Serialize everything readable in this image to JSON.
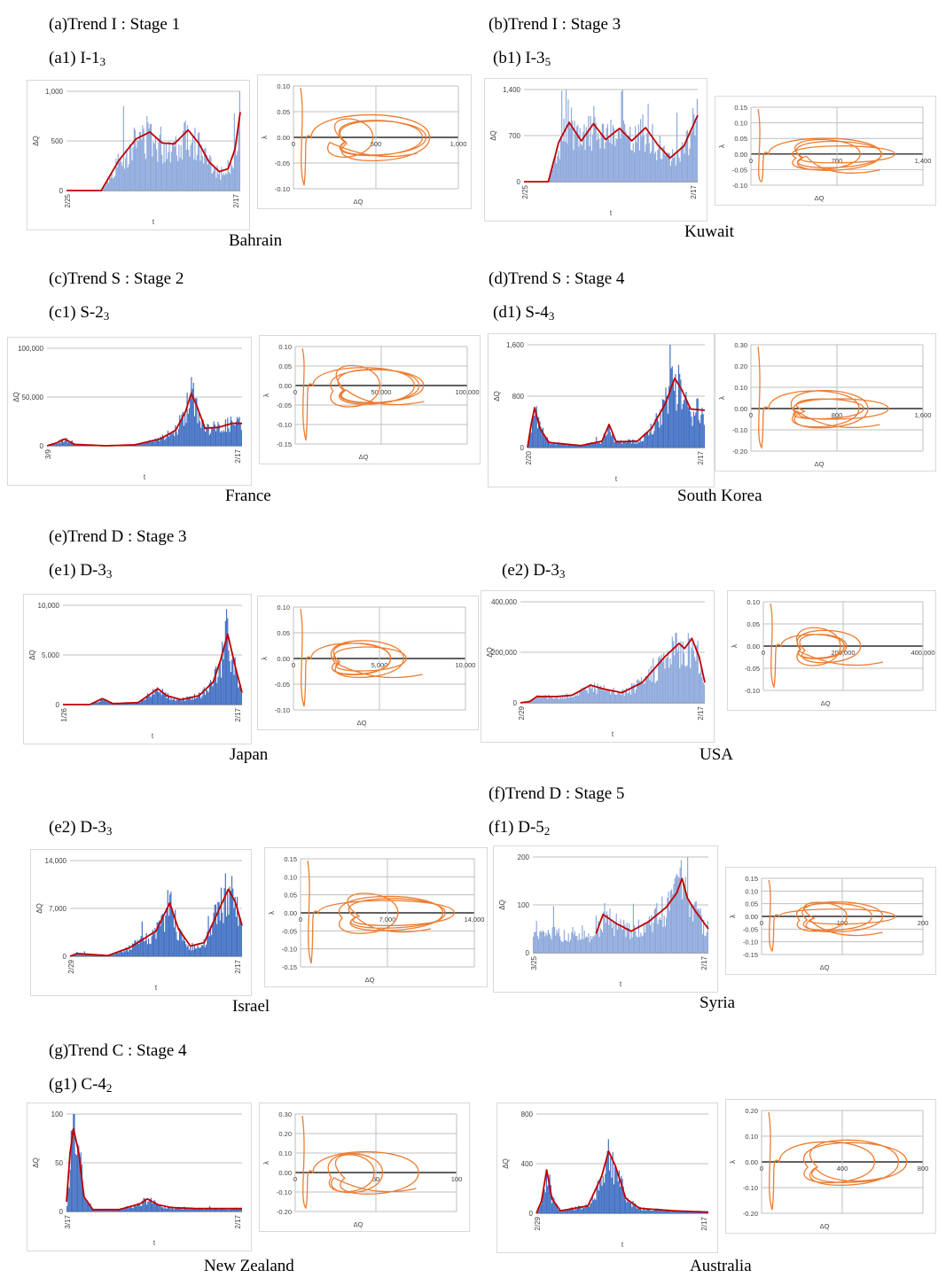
{
  "sections": {
    "a": "(a)Trend I : Stage 1",
    "b": "(b)Trend I : Stage 3",
    "c": "(c)Trend S : Stage 2",
    "d": "(d)Trend S : Stage 4",
    "e": "(e)Trend D : Stage 3",
    "f": "(f)Trend D : Stage 5",
    "g": "(g)Trend C : Stage 4"
  },
  "subs": {
    "a1": {
      "label": "(a1) I-1",
      "sub": "3"
    },
    "b1": {
      "label": "(b1) I-3",
      "sub": "5"
    },
    "c1": {
      "label": "(c1) S-2",
      "sub": "3"
    },
    "d1": {
      "label": "(d1) S-4",
      "sub": "3"
    },
    "e1": {
      "label": "(e1) D-3",
      "sub": "3"
    },
    "e2a": {
      "label": "(e2) D-3",
      "sub": "3"
    },
    "e2b": {
      "label": "(e2) D-3",
      "sub": "3"
    },
    "f1": {
      "label": "(f1) D-5",
      "sub": "2"
    },
    "g1": {
      "label": "(g1) C-4",
      "sub": "2"
    }
  },
  "countries": {
    "bahrain": "Bahrain",
    "kuwait": "Kuwait",
    "france": "France",
    "south_korea": "South Korea",
    "japan": "Japan",
    "usa": "USA",
    "israel": "Israel",
    "syria": "Syria",
    "new_zealand": "New Zealand",
    "australia": "Australia"
  },
  "colors": {
    "bars": "#4472c4",
    "bars_light": "#8faadc",
    "fit": "#c00000",
    "phase": "#ed7d31",
    "grid": "#bfbfbf"
  },
  "chart_data": [
    {
      "id": "bahrain-ts",
      "type": "bar",
      "country": "Bahrain",
      "xlabel": "t",
      "ylabel": "ΔQ",
      "x_ticks": [
        "2/25",
        "2/17"
      ],
      "y_ticks": [
        "0",
        "500",
        "1,000"
      ],
      "ylim": [
        0,
        1000
      ],
      "fit_curve": [
        [
          0,
          0
        ],
        [
          0.2,
          0
        ],
        [
          0.3,
          300
        ],
        [
          0.4,
          520
        ],
        [
          0.48,
          590
        ],
        [
          0.55,
          480
        ],
        [
          0.62,
          470
        ],
        [
          0.7,
          610
        ],
        [
          0.76,
          480
        ],
        [
          0.82,
          290
        ],
        [
          0.88,
          190
        ],
        [
          0.93,
          220
        ],
        [
          0.97,
          420
        ],
        [
          1,
          790
        ]
      ]
    },
    {
      "id": "bahrain-phase",
      "type": "line",
      "xlabel": "ΔQ",
      "ylabel": "λ",
      "x_ticks": [
        "0",
        "500",
        "1,000"
      ],
      "y_ticks": [
        "0.10",
        "0.05",
        "0.00",
        "-0.05",
        "-0.10"
      ],
      "xlim": [
        0,
        1000
      ],
      "ylim": [
        -0.1,
        0.1
      ]
    },
    {
      "id": "kuwait-ts",
      "type": "bar",
      "country": "Kuwait",
      "xlabel": "t",
      "ylabel": "ΔQ",
      "x_ticks": [
        "2/25",
        "2/17"
      ],
      "y_ticks": [
        "0",
        "700",
        "1,400"
      ],
      "ylim": [
        0,
        1400
      ],
      "fit_curve": [
        [
          0,
          0
        ],
        [
          0.14,
          0
        ],
        [
          0.2,
          600
        ],
        [
          0.26,
          900
        ],
        [
          0.33,
          620
        ],
        [
          0.4,
          880
        ],
        [
          0.47,
          640
        ],
        [
          0.55,
          810
        ],
        [
          0.62,
          620
        ],
        [
          0.7,
          820
        ],
        [
          0.77,
          560
        ],
        [
          0.84,
          360
        ],
        [
          0.92,
          540
        ],
        [
          1,
          1010
        ]
      ]
    },
    {
      "id": "kuwait-phase",
      "type": "line",
      "xlabel": "ΔQ",
      "ylabel": "λ",
      "x_ticks": [
        "0",
        "700",
        "1,400"
      ],
      "y_ticks": [
        "0.15",
        "0.10",
        "0.05",
        "0.00",
        "-0.05",
        "-0.10"
      ],
      "xlim": [
        0,
        1400
      ],
      "ylim": [
        -0.1,
        0.15
      ]
    },
    {
      "id": "france-ts",
      "type": "bar",
      "country": "France",
      "xlabel": "t",
      "ylabel": "ΔQ",
      "x_ticks": [
        "3/9",
        "2/17"
      ],
      "y_ticks": [
        "0",
        "50,000",
        "100,000"
      ],
      "ylim": [
        0,
        100000
      ],
      "fit_curve": [
        [
          0,
          0
        ],
        [
          0.05,
          3000
        ],
        [
          0.09,
          7000
        ],
        [
          0.14,
          1500
        ],
        [
          0.3,
          0
        ],
        [
          0.45,
          1000
        ],
        [
          0.58,
          7000
        ],
        [
          0.66,
          16000
        ],
        [
          0.71,
          35000
        ],
        [
          0.74,
          54000
        ],
        [
          0.77,
          40000
        ],
        [
          0.81,
          18000
        ],
        [
          0.88,
          19000
        ],
        [
          0.95,
          23000
        ],
        [
          1,
          23000
        ]
      ]
    },
    {
      "id": "france-phase",
      "type": "line",
      "xlabel": "ΔQ",
      "ylabel": "λ",
      "x_ticks": [
        "0",
        "50,000",
        "100,000"
      ],
      "y_ticks": [
        "0.10",
        "0.05",
        "0.00",
        "-0.05",
        "-0.10",
        "-0.15"
      ],
      "xlim": [
        0,
        100000
      ],
      "ylim": [
        -0.15,
        0.1
      ]
    },
    {
      "id": "korea-ts",
      "type": "bar",
      "country": "South Korea",
      "xlabel": "t",
      "ylabel": "ΔQ",
      "x_ticks": [
        "2/20",
        "2/17"
      ],
      "y_ticks": [
        "0",
        "800",
        "1,600"
      ],
      "ylim": [
        0,
        1600
      ],
      "fit_curve": [
        [
          0,
          0
        ],
        [
          0.02,
          350
        ],
        [
          0.04,
          620
        ],
        [
          0.07,
          300
        ],
        [
          0.12,
          80
        ],
        [
          0.3,
          30
        ],
        [
          0.42,
          100
        ],
        [
          0.46,
          360
        ],
        [
          0.5,
          90
        ],
        [
          0.62,
          100
        ],
        [
          0.7,
          300
        ],
        [
          0.78,
          700
        ],
        [
          0.83,
          1080
        ],
        [
          0.87,
          900
        ],
        [
          0.92,
          600
        ],
        [
          1,
          580
        ]
      ]
    },
    {
      "id": "korea-phase",
      "type": "line",
      "xlabel": "ΔQ",
      "ylabel": "λ",
      "x_ticks": [
        "0",
        "800",
        "1,600"
      ],
      "y_ticks": [
        "0.30",
        "0.20",
        "0.10",
        "0.00",
        "-0.10",
        "-0.20"
      ],
      "xlim": [
        0,
        1600
      ],
      "ylim": [
        -0.2,
        0.3
      ]
    },
    {
      "id": "japan-ts",
      "type": "bar",
      "country": "Japan",
      "xlabel": "t",
      "ylabel": "ΔQ",
      "x_ticks": [
        "1/26",
        "2/17"
      ],
      "y_ticks": [
        "0",
        "5,000",
        "10,000"
      ],
      "ylim": [
        0,
        10000
      ],
      "fit_curve": [
        [
          0,
          0
        ],
        [
          0.15,
          0
        ],
        [
          0.22,
          600
        ],
        [
          0.28,
          100
        ],
        [
          0.42,
          200
        ],
        [
          0.53,
          1600
        ],
        [
          0.58,
          900
        ],
        [
          0.66,
          500
        ],
        [
          0.76,
          900
        ],
        [
          0.84,
          2300
        ],
        [
          0.88,
          4500
        ],
        [
          0.92,
          7100
        ],
        [
          0.96,
          4000
        ],
        [
          1,
          1200
        ]
      ]
    },
    {
      "id": "japan-phase",
      "type": "line",
      "xlabel": "ΔQ",
      "ylabel": "λ",
      "x_ticks": [
        "0",
        "5,000",
        "10,000"
      ],
      "y_ticks": [
        "0.10",
        "0.05",
        "0.00",
        "-0.05",
        "-0.10"
      ],
      "xlim": [
        0,
        10000
      ],
      "ylim": [
        -0.1,
        0.1
      ]
    },
    {
      "id": "usa-ts",
      "type": "bar",
      "country": "USA",
      "xlabel": "t",
      "ylabel": "ΔQ",
      "x_ticks": [
        "2/29",
        "2/17"
      ],
      "y_ticks": [
        "0",
        "200,000",
        "400,000"
      ],
      "ylim": [
        0,
        400000
      ],
      "fit_curve": [
        [
          0,
          0
        ],
        [
          0.05,
          5000
        ],
        [
          0.09,
          25000
        ],
        [
          0.2,
          25000
        ],
        [
          0.28,
          30000
        ],
        [
          0.38,
          70000
        ],
        [
          0.45,
          55000
        ],
        [
          0.55,
          40000
        ],
        [
          0.66,
          80000
        ],
        [
          0.78,
          180000
        ],
        [
          0.86,
          235000
        ],
        [
          0.89,
          215000
        ],
        [
          0.93,
          255000
        ],
        [
          0.97,
          180000
        ],
        [
          1,
          80000
        ]
      ]
    },
    {
      "id": "usa-phase",
      "type": "line",
      "xlabel": "ΔQ",
      "ylabel": "λ",
      "x_ticks": [
        "0",
        "200,000",
        "400,000"
      ],
      "y_ticks": [
        "0.10",
        "0.05",
        "0.00",
        "-0.05",
        "-0.10"
      ],
      "xlim": [
        0,
        400000
      ],
      "ylim": [
        -0.1,
        0.1
      ]
    },
    {
      "id": "israel-ts",
      "type": "bar",
      "country": "Israel",
      "xlabel": "t",
      "ylabel": "ΔQ",
      "x_ticks": [
        "2/29",
        "2/17"
      ],
      "y_ticks": [
        "0",
        "7,000",
        "14,000"
      ],
      "ylim": [
        0,
        14000
      ],
      "fit_curve": [
        [
          0,
          0
        ],
        [
          0.04,
          400
        ],
        [
          0.1,
          300
        ],
        [
          0.22,
          100
        ],
        [
          0.35,
          1300
        ],
        [
          0.5,
          3700
        ],
        [
          0.58,
          7800
        ],
        [
          0.63,
          4000
        ],
        [
          0.7,
          1500
        ],
        [
          0.78,
          2000
        ],
        [
          0.86,
          6500
        ],
        [
          0.92,
          9800
        ],
        [
          0.96,
          8000
        ],
        [
          1,
          4500
        ]
      ]
    },
    {
      "id": "israel-phase",
      "type": "line",
      "xlabel": "ΔQ",
      "ylabel": "λ",
      "x_ticks": [
        "0",
        "7,000",
        "14,000"
      ],
      "y_ticks": [
        "0.15",
        "0.10",
        "0.05",
        "0.00",
        "-0.05",
        "-0.10",
        "-0.15"
      ],
      "xlim": [
        0,
        14000
      ],
      "ylim": [
        -0.15,
        0.15
      ]
    },
    {
      "id": "syria-ts",
      "type": "bar",
      "country": "Syria",
      "xlabel": "t",
      "ylabel": "ΔQ",
      "x_ticks": [
        "3/25",
        "2/17"
      ],
      "y_ticks": [
        "0",
        "100",
        "200"
      ],
      "ylim": [
        0,
        200
      ],
      "fit_curve": [
        [
          0.36,
          40
        ],
        [
          0.4,
          80
        ],
        [
          0.48,
          60
        ],
        [
          0.56,
          45
        ],
        [
          0.66,
          65
        ],
        [
          0.76,
          95
        ],
        [
          0.82,
          125
        ],
        [
          0.85,
          155
        ],
        [
          0.88,
          115
        ],
        [
          0.92,
          90
        ],
        [
          0.96,
          70
        ],
        [
          1,
          50
        ]
      ]
    },
    {
      "id": "syria-phase",
      "type": "line",
      "xlabel": "ΔQ",
      "ylabel": "λ",
      "x_ticks": [
        "0",
        "100",
        "200"
      ],
      "y_ticks": [
        "0.15",
        "0.10",
        "0.05",
        "0.00",
        "-0.05",
        "-0.10",
        "-0.15"
      ],
      "xlim": [
        0,
        200
      ],
      "ylim": [
        -0.15,
        0.15
      ]
    },
    {
      "id": "nz-ts",
      "type": "bar",
      "country": "New Zealand",
      "xlabel": "t",
      "ylabel": "ΔQ",
      "x_ticks": [
        "3/17",
        "2/17"
      ],
      "y_ticks": [
        "0",
        "50",
        "100"
      ],
      "ylim": [
        0,
        100
      ],
      "fit_curve": [
        [
          0,
          10
        ],
        [
          0.02,
          60
        ],
        [
          0.04,
          85
        ],
        [
          0.07,
          60
        ],
        [
          0.1,
          15
        ],
        [
          0.15,
          2
        ],
        [
          0.3,
          2
        ],
        [
          0.42,
          8
        ],
        [
          0.46,
          13
        ],
        [
          0.52,
          7
        ],
        [
          0.6,
          4
        ],
        [
          0.75,
          3
        ],
        [
          1,
          3
        ]
      ]
    },
    {
      "id": "nz-phase",
      "type": "line",
      "xlabel": "ΔQ",
      "ylabel": "λ",
      "x_ticks": [
        "0",
        "50",
        "100"
      ],
      "y_ticks": [
        "0.30",
        "0.20",
        "0.10",
        "0.00",
        "-0.10",
        "-0.20"
      ],
      "xlim": [
        0,
        100
      ],
      "ylim": [
        -0.2,
        0.3
      ]
    },
    {
      "id": "aus-ts",
      "type": "bar",
      "country": "Australia",
      "xlabel": "t",
      "ylabel": "ΔQ",
      "x_ticks": [
        "2/29",
        "2/17"
      ],
      "y_ticks": [
        "0",
        "400",
        "800"
      ],
      "ylim": [
        0,
        800
      ],
      "fit_curve": [
        [
          0,
          0
        ],
        [
          0.03,
          100
        ],
        [
          0.06,
          350
        ],
        [
          0.09,
          120
        ],
        [
          0.14,
          20
        ],
        [
          0.3,
          60
        ],
        [
          0.38,
          300
        ],
        [
          0.42,
          500
        ],
        [
          0.46,
          380
        ],
        [
          0.52,
          120
        ],
        [
          0.6,
          40
        ],
        [
          0.8,
          20
        ],
        [
          1,
          10
        ]
      ]
    },
    {
      "id": "aus-phase",
      "type": "line",
      "xlabel": "ΔQ",
      "ylabel": "λ",
      "x_ticks": [
        "0",
        "400",
        "800"
      ],
      "y_ticks": [
        "0.20",
        "0.10",
        "0.00",
        "-0.10",
        "-0.20"
      ],
      "xlim": [
        0,
        800
      ],
      "ylim": [
        -0.2,
        0.2
      ]
    }
  ]
}
